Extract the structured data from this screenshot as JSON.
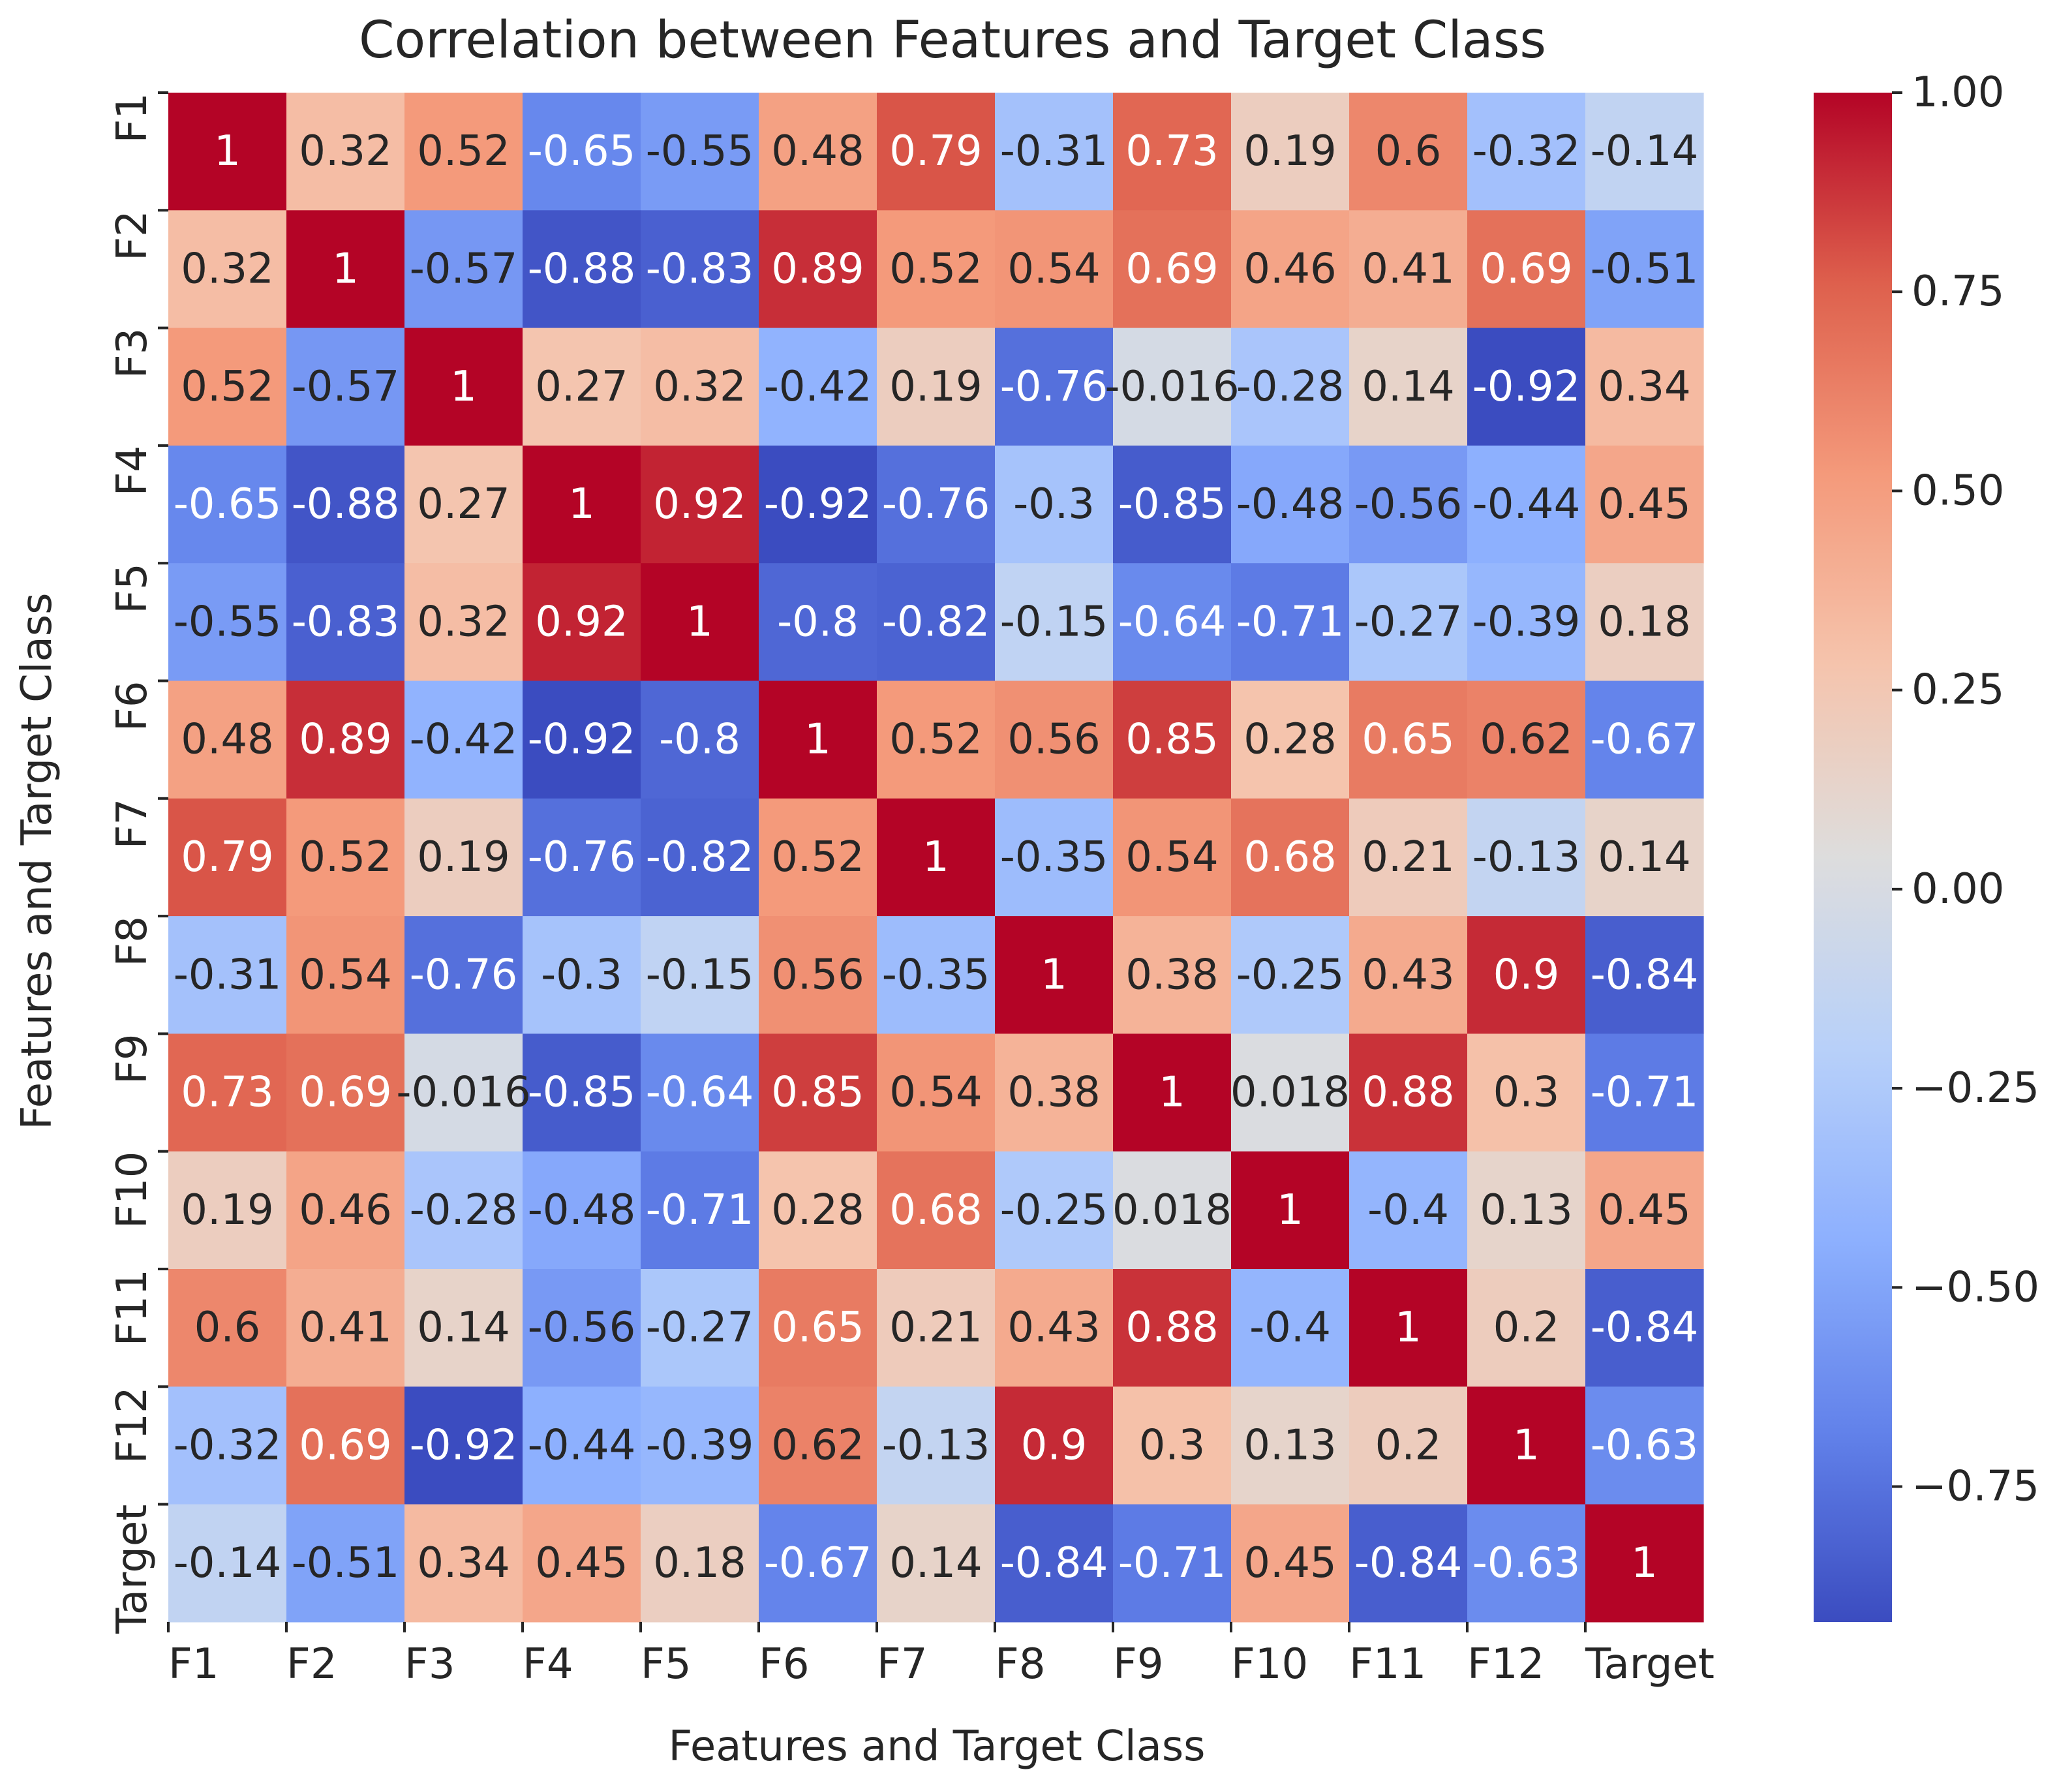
{
  "chart_data": {
    "type": "heatmap",
    "title": "Correlation between Features and Target Class",
    "xlabel": "Features and Target Class",
    "ylabel": "Features and Target Class",
    "labels": [
      "F1",
      "F2",
      "F3",
      "F4",
      "F5",
      "F6",
      "F7",
      "F8",
      "F9",
      "F10",
      "F11",
      "F12",
      "Target"
    ],
    "matrix": [
      [
        1,
        0.32,
        0.52,
        -0.65,
        -0.55,
        0.48,
        0.79,
        -0.31,
        0.73,
        0.19,
        0.6,
        -0.32,
        -0.14
      ],
      [
        0.32,
        1,
        -0.57,
        -0.88,
        -0.83,
        0.89,
        0.52,
        0.54,
        0.69,
        0.46,
        0.41,
        0.69,
        -0.51
      ],
      [
        0.52,
        -0.57,
        1,
        0.27,
        0.32,
        -0.42,
        0.19,
        -0.76,
        -0.016,
        -0.28,
        0.14,
        -0.92,
        0.34
      ],
      [
        -0.65,
        -0.88,
        0.27,
        1,
        0.92,
        -0.92,
        -0.76,
        -0.3,
        -0.85,
        -0.48,
        -0.56,
        -0.44,
        0.45
      ],
      [
        -0.55,
        -0.83,
        0.32,
        0.92,
        1,
        -0.8,
        -0.82,
        -0.15,
        -0.64,
        -0.71,
        -0.27,
        -0.39,
        0.18
      ],
      [
        0.48,
        0.89,
        -0.42,
        -0.92,
        -0.8,
        1,
        0.52,
        0.56,
        0.85,
        0.28,
        0.65,
        0.62,
        -0.67
      ],
      [
        0.79,
        0.52,
        0.19,
        -0.76,
        -0.82,
        0.52,
        1,
        -0.35,
        0.54,
        0.68,
        0.21,
        -0.13,
        0.14
      ],
      [
        -0.31,
        0.54,
        -0.76,
        -0.3,
        -0.15,
        0.56,
        -0.35,
        1,
        0.38,
        -0.25,
        0.43,
        0.9,
        -0.84
      ],
      [
        0.73,
        0.69,
        -0.016,
        -0.85,
        -0.64,
        0.85,
        0.54,
        0.38,
        1,
        0.018,
        0.88,
        0.3,
        -0.71
      ],
      [
        0.19,
        0.46,
        -0.28,
        -0.48,
        -0.71,
        0.28,
        0.68,
        -0.25,
        0.018,
        1,
        -0.4,
        0.13,
        0.45
      ],
      [
        0.6,
        0.41,
        0.14,
        -0.56,
        -0.27,
        0.65,
        0.21,
        0.43,
        0.88,
        -0.4,
        1,
        0.2,
        -0.84
      ],
      [
        -0.32,
        0.69,
        -0.92,
        -0.44,
        -0.39,
        0.62,
        -0.13,
        0.9,
        0.3,
        0.13,
        0.2,
        1,
        -0.63
      ],
      [
        -0.14,
        -0.51,
        0.34,
        0.45,
        0.18,
        -0.67,
        0.14,
        -0.84,
        -0.71,
        0.45,
        -0.84,
        -0.63,
        1
      ]
    ],
    "colormap": "coolwarm",
    "vmin": -0.92,
    "vmax": 1.0,
    "colorbar_ticks": [
      1.0,
      0.75,
      0.5,
      0.25,
      0.0,
      -0.25,
      -0.5,
      -0.75
    ],
    "colorbar_tick_labels": [
      "1.00",
      "0.75",
      "0.50",
      "0.25",
      "0.00",
      "−0.25",
      "−0.50",
      "−0.75"
    ]
  }
}
